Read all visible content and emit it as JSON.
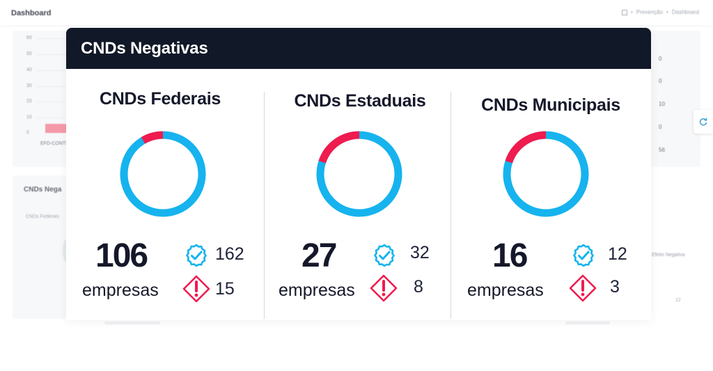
{
  "background": {
    "page_title": "Dashboard",
    "breadcrumb": [
      "Prevenção",
      "Dashboard"
    ],
    "y_ticks": [
      "60",
      "50",
      "40",
      "30",
      "20",
      "10",
      "0"
    ],
    "category_label": "EFD-CONTI",
    "right_numbers": [
      "0",
      "0",
      "10",
      "0",
      "56"
    ],
    "section_heading": "CNDs Nega",
    "section_sub": "CNDs Federais",
    "certificate_label": "Efeito Negativa",
    "small_number": "12"
  },
  "modal": {
    "title": "CNDs Negativas",
    "sections": [
      {
        "title": "CNDs Federais",
        "count": "106",
        "unit": "empresas",
        "valid": "162",
        "alert": "15"
      },
      {
        "title": "CNDs Estaduais",
        "count": "27",
        "unit": "empresas",
        "valid": "32",
        "alert": "8"
      },
      {
        "title": "CNDs Municipais",
        "count": "16",
        "unit": "empresas",
        "valid": "12",
        "alert": "3"
      }
    ]
  },
  "colors": {
    "valid": "#16b3ee",
    "alert": "#f01b4e",
    "header": "#111827"
  },
  "icons": {
    "valid": "check-badge-icon",
    "alert": "alert-diamond-icon",
    "refresh": "refresh-icon",
    "home": "home-icon"
  }
}
